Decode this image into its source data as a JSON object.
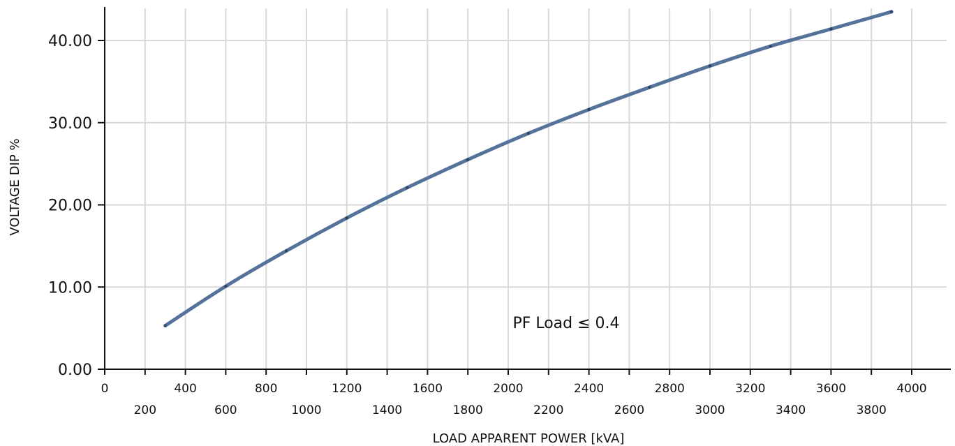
{
  "chart_data": {
    "type": "line",
    "title": "",
    "xlabel": "LOAD APPARENT POWER [kVA]",
    "ylabel": "VOLTAGE DIP %",
    "xlim": [
      0,
      4000
    ],
    "ylim": [
      0,
      44
    ],
    "grid": true,
    "x_ticks": [
      0,
      200,
      400,
      600,
      800,
      1000,
      1200,
      1400,
      1600,
      1800,
      2000,
      2200,
      2400,
      2600,
      2800,
      3000,
      3200,
      3400,
      3600,
      3800,
      4000
    ],
    "y_ticks": [
      0,
      10,
      20,
      30,
      40
    ],
    "y_tick_labels": [
      "0.00",
      "10.00",
      "20.00",
      "30.00",
      "40.00"
    ],
    "annotation": "PF Load ≤ 0.4",
    "series": [
      {
        "x": [
          300,
          600,
          900,
          1200,
          1500,
          1800,
          2100,
          2400,
          2700,
          3000,
          3300,
          3600,
          3900
        ],
        "y": [
          5.3,
          10.1,
          14.4,
          18.4,
          22.1,
          25.5,
          28.7,
          31.6,
          34.3,
          36.9,
          39.3,
          41.4,
          43.5
        ],
        "color": "#55739a"
      }
    ]
  }
}
